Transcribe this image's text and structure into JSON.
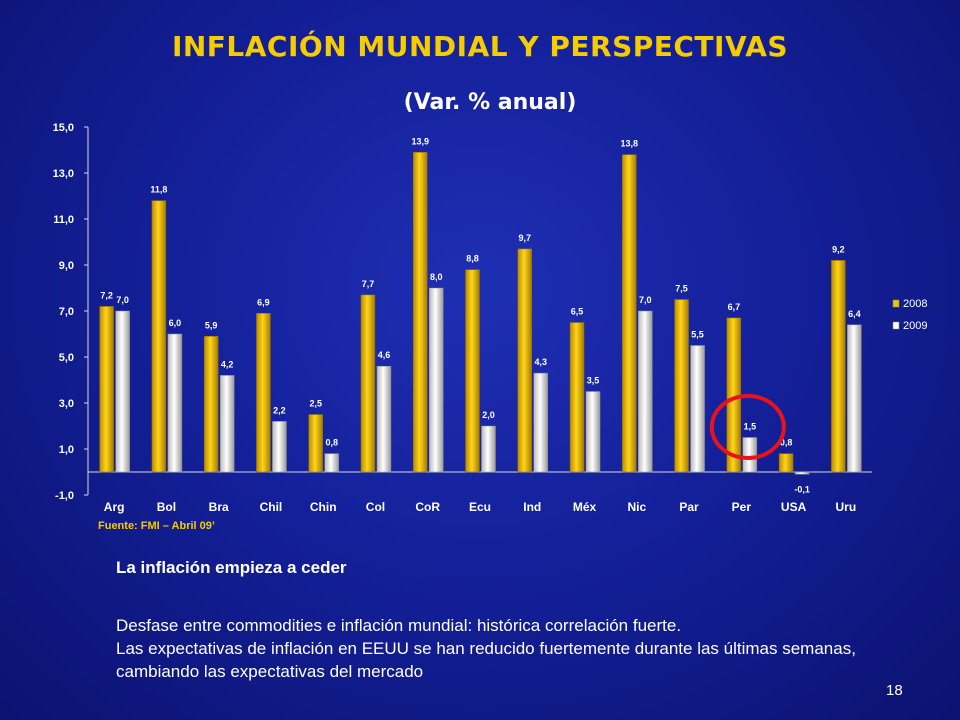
{
  "slide": {
    "title": "INFLACIÓN MUNDIAL Y PERSPECTIVAS",
    "subtitle": "(Var. % anual)",
    "source": "Fuente:  FMI – Abril 09’",
    "heading": "La inflación empieza a ceder",
    "paragraph1": "Desfase entre commodities e inflación mundial: histórica correlación fuerte.",
    "paragraph2": "Las expectativas de inflación en EEUU se han reducido fuertemente durante las últimas semanas, cambiando las expectativas del mercado",
    "page_number": "18"
  },
  "colors": {
    "series_2008": "#f2c200",
    "series_2009": "#ffffff",
    "highlight_circle": "#e8121b",
    "axis_text": "#ffffff",
    "title": "#f5cc00"
  },
  "chart_data": {
    "type": "bar",
    "categories": [
      "Arg",
      "Bol",
      "Bra",
      "Chil",
      "Chin",
      "Col",
      "CoR",
      "Ecu",
      "Ind",
      "Méx",
      "Nic",
      "Par",
      "Per",
      "USA",
      "Uru"
    ],
    "series": [
      {
        "name": "2008",
        "values": [
          7.2,
          11.8,
          5.9,
          6.9,
          2.5,
          7.7,
          13.9,
          8.8,
          9.7,
          6.5,
          13.8,
          7.5,
          6.7,
          0.8,
          9.2
        ],
        "labels": [
          "7,2",
          "11,8",
          "5,9",
          "6,9",
          "2,5",
          "7,7",
          "13,9",
          "8,8",
          "9,7",
          "6,5",
          "13,8",
          "7,5",
          "6,7",
          "0,8",
          "9,2"
        ]
      },
      {
        "name": "2009",
        "values": [
          7.0,
          6.0,
          4.2,
          2.2,
          0.8,
          4.6,
          8.0,
          2.0,
          4.3,
          3.5,
          7.0,
          5.5,
          1.5,
          -0.1,
          6.4
        ],
        "labels": [
          "7,0",
          "6,0",
          "4,2",
          "2,2",
          "0,8",
          "4,6",
          "8,0",
          "2,0",
          "4,3",
          "3,5",
          "7,0",
          "5,5",
          "1,5",
          "-0,1",
          "6,4"
        ]
      }
    ],
    "ylim": [
      -1,
      15
    ],
    "yticks": [
      -1,
      1,
      3,
      5,
      7,
      9,
      11,
      13,
      15
    ],
    "ytick_labels": [
      "-1,0",
      "1,0",
      "3,0",
      "5,0",
      "7,0",
      "9,0",
      "11,0",
      "13,0",
      "15,0"
    ],
    "legend_position": "right",
    "grid": false,
    "annotation": {
      "type": "circle",
      "category": "Per",
      "series": "2009"
    }
  }
}
